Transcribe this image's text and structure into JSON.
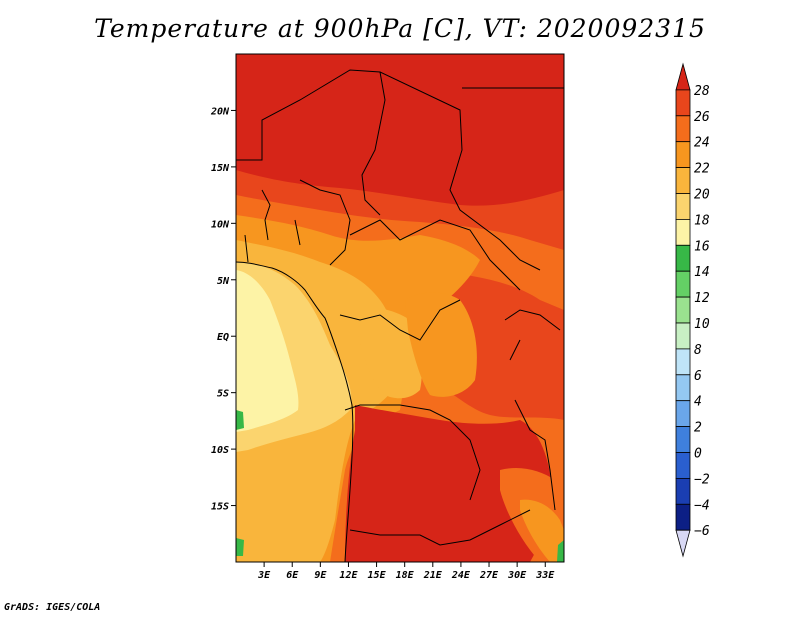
{
  "title": "Temperature at 900hPa [C], VT: 2020092315",
  "footer": "GrADS: IGES/COLA",
  "map": {
    "region": "Central Africa",
    "lon_range_deg": [
      0,
      35
    ],
    "lat_range_deg": [
      -20,
      25
    ],
    "lat_ticks": [
      {
        "label": "20N",
        "lat": 20
      },
      {
        "label": "15N",
        "lat": 15
      },
      {
        "label": "10N",
        "lat": 10
      },
      {
        "label": "5N",
        "lat": 5
      },
      {
        "label": "EQ",
        "lat": 0
      },
      {
        "label": "5S",
        "lat": -5
      },
      {
        "label": "10S",
        "lat": -10
      },
      {
        "label": "15S",
        "lat": -15
      }
    ],
    "lon_ticks": [
      {
        "label": "3E",
        "lon": 3
      },
      {
        "label": "6E",
        "lon": 6
      },
      {
        "label": "9E",
        "lon": 9
      },
      {
        "label": "12E",
        "lon": 12
      },
      {
        "label": "15E",
        "lon": 15
      },
      {
        "label": "18E",
        "lon": 18
      },
      {
        "label": "21E",
        "lon": 21
      },
      {
        "label": "24E",
        "lon": 24
      },
      {
        "label": "27E",
        "lon": 27
      },
      {
        "label": "30E",
        "lon": 30
      },
      {
        "label": "33E",
        "lon": 33
      }
    ]
  },
  "colorbar": {
    "levels": [
      "28",
      "26",
      "24",
      "22",
      "20",
      "18",
      "16",
      "14",
      "12",
      "10",
      "8",
      "6",
      "4",
      "2",
      "0",
      "−2",
      "−4",
      "−6"
    ],
    "colors": [
      "#d62518",
      "#e8461c",
      "#f46d1c",
      "#f7961f",
      "#f9b53c",
      "#fbd46e",
      "#fdf3a6",
      "#37b847",
      "#64d065",
      "#9ae28f",
      "#c8f0c4",
      "#bfe4f8",
      "#94c8f2",
      "#6aa6ea",
      "#3f80dd",
      "#2a5fcf",
      "#1a3eb2",
      "#0c1f85",
      "#d8d8f4"
    ]
  }
}
